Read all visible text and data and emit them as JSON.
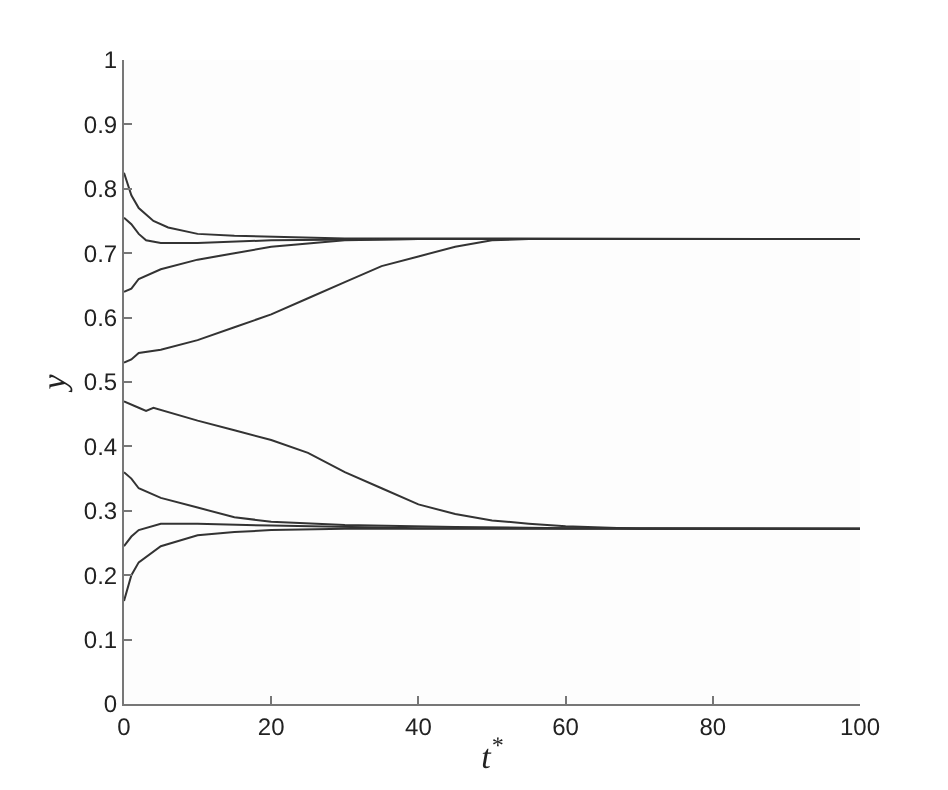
{
  "chart_data": {
    "type": "line",
    "xlabel": "t$^{*}$",
    "ylabel": "y",
    "xlim": [
      0,
      100
    ],
    "ylim": [
      0,
      1
    ],
    "xticks": [
      0,
      20,
      40,
      60,
      80,
      100
    ],
    "yticks": [
      0,
      0.1,
      0.2,
      0.3,
      0.4,
      0.5,
      0.6,
      0.7,
      0.8,
      0.9,
      1
    ],
    "marker": "none",
    "line_style": "solid",
    "series": [
      {
        "color": "#333333",
        "x": [
          0,
          1,
          2,
          4,
          6,
          10,
          15,
          30,
          100
        ],
        "values": [
          0.825,
          0.79,
          0.77,
          0.75,
          0.74,
          0.73,
          0.727,
          0.723,
          0.722
        ]
      },
      {
        "color": "#333333",
        "x": [
          0,
          1,
          2,
          3,
          5,
          10,
          20,
          40,
          100
        ],
        "values": [
          0.755,
          0.745,
          0.73,
          0.72,
          0.716,
          0.716,
          0.72,
          0.722,
          0.722
        ]
      },
      {
        "color": "#333333",
        "x": [
          0,
          1,
          2,
          5,
          10,
          15,
          20,
          25,
          30,
          40,
          100
        ],
        "values": [
          0.64,
          0.645,
          0.66,
          0.675,
          0.69,
          0.7,
          0.71,
          0.715,
          0.72,
          0.722,
          0.722
        ]
      },
      {
        "color": "#333333",
        "x": [
          0,
          1,
          2,
          5,
          10,
          15,
          20,
          25,
          30,
          35,
          40,
          45,
          50,
          55,
          100
        ],
        "values": [
          0.53,
          0.535,
          0.545,
          0.55,
          0.565,
          0.585,
          0.605,
          0.63,
          0.655,
          0.68,
          0.695,
          0.71,
          0.72,
          0.722,
          0.722
        ]
      },
      {
        "color": "#333333",
        "x": [
          0,
          2,
          3,
          4,
          10,
          15,
          20,
          25,
          30,
          35,
          40,
          45,
          50,
          55,
          60,
          70,
          100
        ],
        "values": [
          0.47,
          0.46,
          0.455,
          0.46,
          0.44,
          0.425,
          0.41,
          0.39,
          0.36,
          0.335,
          0.31,
          0.295,
          0.285,
          0.28,
          0.276,
          0.272,
          0.272
        ]
      },
      {
        "color": "#333333",
        "x": [
          0,
          1,
          2,
          5,
          10,
          15,
          20,
          30,
          45,
          60,
          100
        ],
        "values": [
          0.36,
          0.35,
          0.335,
          0.32,
          0.305,
          0.29,
          0.283,
          0.278,
          0.275,
          0.273,
          0.272
        ]
      },
      {
        "color": "#333333",
        "x": [
          0,
          1,
          2,
          5,
          10,
          20,
          40,
          100
        ],
        "values": [
          0.245,
          0.26,
          0.27,
          0.28,
          0.28,
          0.277,
          0.273,
          0.272
        ]
      },
      {
        "color": "#333333",
        "x": [
          0,
          1,
          2,
          5,
          10,
          15,
          20,
          30,
          100
        ],
        "values": [
          0.16,
          0.2,
          0.22,
          0.245,
          0.262,
          0.267,
          0.27,
          0.272,
          0.272
        ]
      }
    ]
  }
}
